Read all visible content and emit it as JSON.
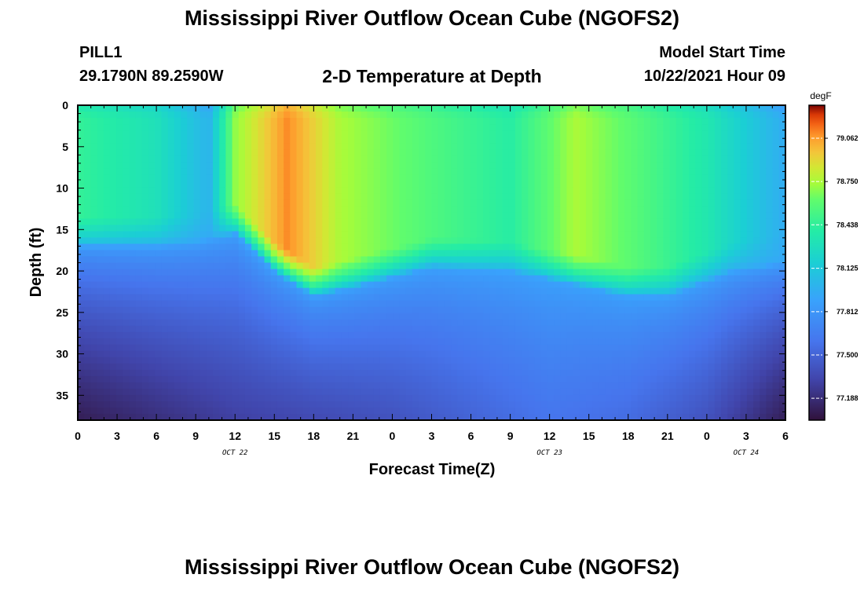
{
  "header": {
    "title": "Mississippi River Outflow Ocean Cube (NGOFS2)",
    "station": "PILL1",
    "coordinates": "29.1790N  89.2590W",
    "subtitle": "2-D Temperature at Depth",
    "model_start_label": "Model Start Time",
    "model_start_value": "10/22/2021 Hour 09"
  },
  "footer": {
    "title_repeat": "Mississippi River Outflow Ocean Cube (NGOFS2)"
  },
  "chart_data": {
    "type": "heatmap",
    "title": "2-D Temperature at Depth",
    "xlabel": "Forecast Time(Z)",
    "ylabel": "Depth (ft)",
    "x_unit": "forecast hour",
    "x_range": [
      0,
      54
    ],
    "xticks": [
      {
        "h": 0,
        "label": "0"
      },
      {
        "h": 3,
        "label": "3"
      },
      {
        "h": 6,
        "label": "6"
      },
      {
        "h": 9,
        "label": "9"
      },
      {
        "h": 12,
        "label": "12"
      },
      {
        "h": 15,
        "label": "15"
      },
      {
        "h": 18,
        "label": "18"
      },
      {
        "h": 21,
        "label": "21"
      },
      {
        "h": 24,
        "label": "0"
      },
      {
        "h": 27,
        "label": "3"
      },
      {
        "h": 30,
        "label": "6"
      },
      {
        "h": 33,
        "label": "9"
      },
      {
        "h": 36,
        "label": "12"
      },
      {
        "h": 39,
        "label": "15"
      },
      {
        "h": 42,
        "label": "18"
      },
      {
        "h": 45,
        "label": "21"
      },
      {
        "h": 48,
        "label": "0"
      },
      {
        "h": 51,
        "label": "3"
      },
      {
        "h": 54,
        "label": "6"
      }
    ],
    "date_labels": [
      {
        "h": 12,
        "label": "OCT 22"
      },
      {
        "h": 36,
        "label": "OCT 23"
      },
      {
        "h": 51,
        "label": "OCT 24"
      }
    ],
    "y_range": [
      0,
      38
    ],
    "y_inverted": true,
    "yticks": [
      0,
      5,
      10,
      15,
      20,
      25,
      30,
      35
    ],
    "colorbar": {
      "unit": "degF",
      "range": [
        77.03,
        79.3
      ],
      "ticks": [
        "79.062",
        "78.750",
        "78.438",
        "78.125",
        "77.812",
        "77.500",
        "77.188"
      ],
      "colormap": "turbo"
    },
    "thermocline_depth_ft": {
      "hours": [
        0,
        6,
        9,
        12,
        15,
        18,
        21,
        27,
        33,
        36,
        39,
        42,
        45,
        50,
        54
      ],
      "depths": [
        17,
        17,
        16.5,
        15.5,
        20,
        23,
        22,
        19.5,
        20,
        21,
        22,
        23,
        23,
        20,
        19
      ]
    },
    "surface_temperature_degF": {
      "hours": [
        0,
        6,
        10,
        12,
        16,
        20,
        27,
        33,
        38,
        42,
        48,
        54
      ],
      "values": [
        78.45,
        78.3,
        78.0,
        78.7,
        79.1,
        78.75,
        78.55,
        78.4,
        78.75,
        78.6,
        78.35,
        77.95
      ]
    },
    "bottom_temperature_degF": {
      "hours": [
        0,
        6,
        12,
        18,
        24,
        30,
        36,
        42,
        48,
        52,
        54
      ],
      "values": [
        77.1,
        77.2,
        77.3,
        77.35,
        77.4,
        77.5,
        77.6,
        77.55,
        77.4,
        77.2,
        77.1
      ]
    }
  }
}
